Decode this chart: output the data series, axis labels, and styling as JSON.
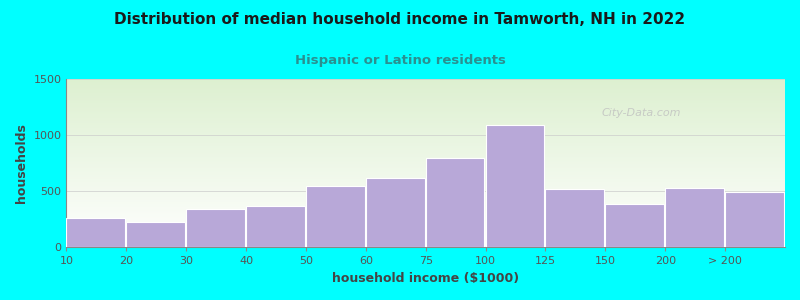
{
  "title": "Distribution of median household income in Tamworth, NH in 2022",
  "subtitle": "Hispanic or Latino residents",
  "xlabel": "household income ($1000)",
  "ylabel": "households",
  "background_color": "#00FFFF",
  "plot_bg_top": "#ddf0d0",
  "plot_bg_bottom": "#ffffff",
  "bar_color": "#b8a8d8",
  "bar_edge_color": "#ffffff",
  "title_color": "#1a1a1a",
  "subtitle_color": "#2a9090",
  "axis_label_color": "#444444",
  "tick_label_color": "#555555",
  "watermark": "City-Data.com",
  "categories": [
    "10",
    "20",
    "30",
    "40",
    "50",
    "60",
    "75",
    "100",
    "125",
    "150",
    "200",
    "> 200"
  ],
  "values": [
    260,
    230,
    340,
    370,
    550,
    620,
    800,
    1090,
    520,
    390,
    530,
    490
  ],
  "ylim": [
    0,
    1500
  ],
  "yticks": [
    0,
    500,
    1000,
    1500
  ],
  "figsize": [
    8.0,
    3.0
  ],
  "dpi": 100
}
